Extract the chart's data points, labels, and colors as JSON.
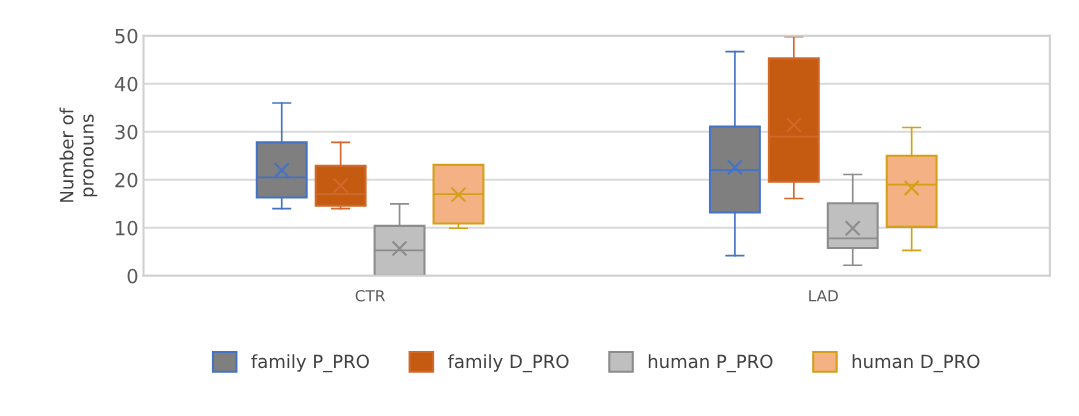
{
  "chart_data": {
    "type": "box",
    "ylabel": "Number of\npronouns",
    "categories": [
      "CTR",
      "LAD"
    ],
    "ylim": [
      0,
      50
    ],
    "yticks": [
      0,
      10,
      20,
      30,
      40,
      50
    ],
    "grid": "y",
    "legend": "bottom",
    "marker": "cross",
    "series": [
      {
        "name": "family P_PRO",
        "color": "#7f7f7f",
        "boxes": [
          {
            "low": 14,
            "q1": 16.3,
            "median": 20.5,
            "q3": 27.8,
            "high": 36,
            "mean": 22
          },
          {
            "low": 4.2,
            "q1": 13.2,
            "median": 22,
            "q3": 31.1,
            "high": 46.7,
            "mean": 22.6
          }
        ]
      },
      {
        "name": "family D_PRO",
        "color": "#c55a11",
        "boxes": [
          {
            "low": 14,
            "q1": 14.6,
            "median": 17,
            "q3": 22.9,
            "high": 27.8,
            "mean": 18.8
          },
          {
            "low": 16.1,
            "q1": 19.6,
            "median": 29,
            "q3": 45.3,
            "high": 49.8,
            "mean": 31.4
          }
        ]
      },
      {
        "name": "human P_PRO",
        "color": "#bfbfbf",
        "boxes": [
          {
            "low": 0,
            "q1": 0,
            "median": 5.3,
            "q3": 10.4,
            "high": 15,
            "mean": 5.7
          },
          {
            "low": 2.2,
            "q1": 5.8,
            "median": 7.8,
            "q3": 15.1,
            "high": 21.1,
            "mean": 9.9
          }
        ]
      },
      {
        "name": "human D_PRO",
        "color": "#f4b183",
        "boxes": [
          {
            "low": 9.9,
            "q1": 10.9,
            "median": 17,
            "q3": 23.1,
            "high": 23.1,
            "mean": 16.9
          },
          {
            "low": 5.3,
            "q1": 10.2,
            "median": 19,
            "q3": 25,
            "high": 30.9,
            "mean": 18.3
          }
        ]
      }
    ]
  }
}
